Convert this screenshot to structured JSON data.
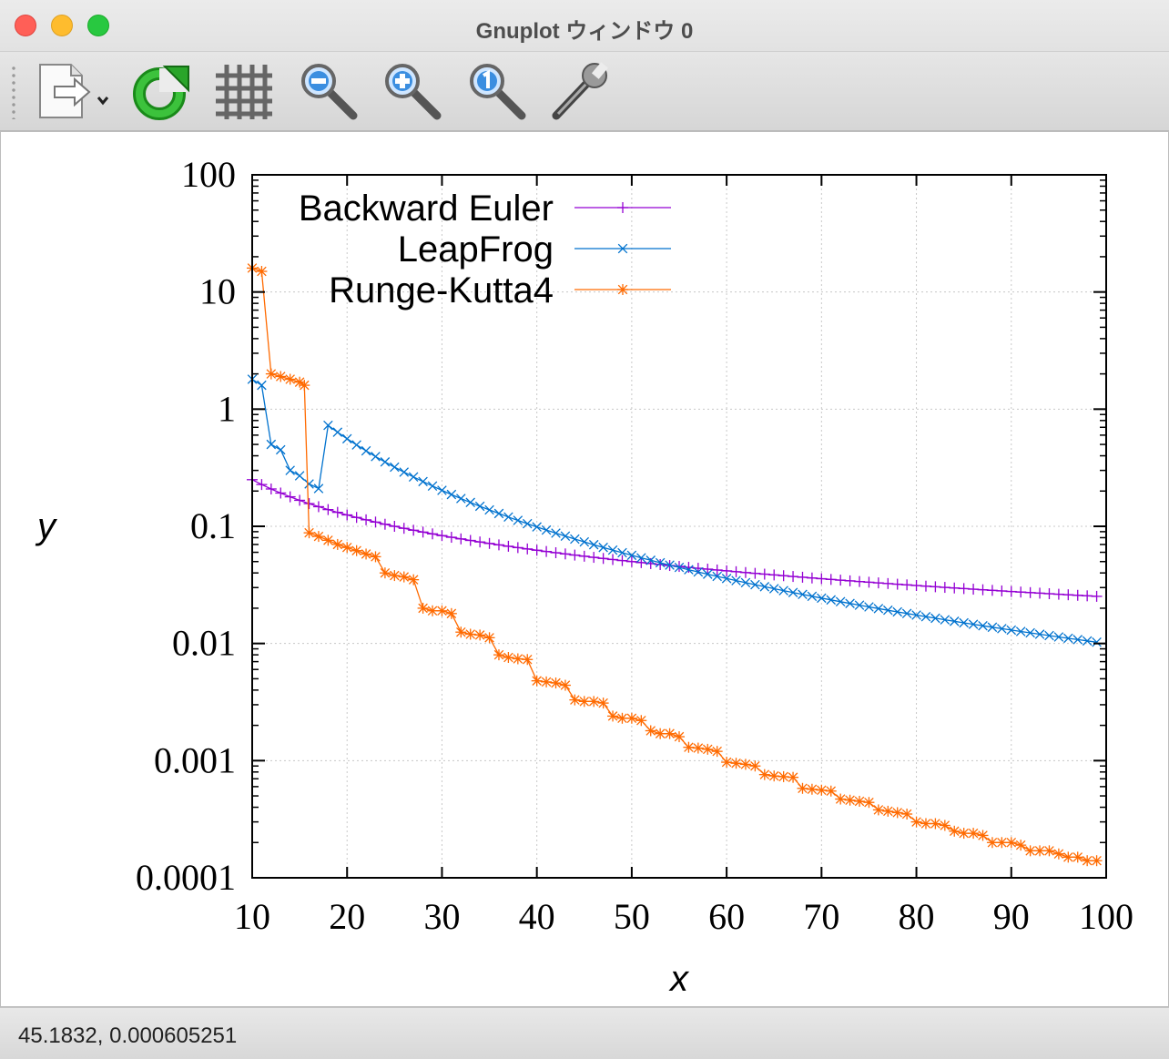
{
  "window": {
    "title": "Gnuplot ウィンドウ 0",
    "controls": [
      "close",
      "minimize",
      "zoom"
    ]
  },
  "toolbar": {
    "items": [
      {
        "name": "export-menu",
        "icon": "export-icon"
      },
      {
        "name": "replot",
        "icon": "refresh-icon"
      },
      {
        "name": "grid",
        "icon": "grid-icon"
      },
      {
        "name": "zoom-out",
        "icon": "zoom-out-icon"
      },
      {
        "name": "zoom-in",
        "icon": "zoom-in-icon"
      },
      {
        "name": "zoom-reset",
        "icon": "zoom-reset-icon"
      },
      {
        "name": "settings",
        "icon": "wrench-icon"
      }
    ]
  },
  "status": {
    "coordinates": "45.1832,  0.000605251"
  },
  "chart_data": {
    "type": "line",
    "title": "",
    "xlabel": "x",
    "ylabel": "y",
    "xlim": [
      10,
      100
    ],
    "ylim": [
      0.0001,
      100
    ],
    "yscale": "log",
    "grid": true,
    "legend_position": "top-left",
    "xticks": [
      "10",
      "20",
      "30",
      "40",
      "50",
      "60",
      "70",
      "80",
      "90",
      "100"
    ],
    "yticks": [
      "100",
      "10",
      "1",
      "0.1",
      "0.01",
      "0.001",
      "0.0001"
    ],
    "series": [
      {
        "name": "Backward Euler",
        "color": "#9400d3",
        "marker": "plus",
        "formula": "y = 2.5 / x"
      },
      {
        "name": "LeapFrog",
        "color": "#0072ce",
        "marker": "cross",
        "points": [
          [
            10,
            1.8
          ],
          [
            11,
            1.6
          ],
          [
            12,
            0.5
          ],
          [
            13,
            0.45
          ],
          [
            14,
            0.3
          ],
          [
            15,
            0.27
          ],
          [
            16,
            0.23
          ],
          [
            17,
            0.21
          ]
        ],
        "tail_formula": "y = 1000 / x^2.5"
      },
      {
        "name": "Runge-Kutta4",
        "color": "#ff6a00",
        "marker": "star",
        "points": [
          [
            10,
            16
          ],
          [
            11,
            15
          ],
          [
            12,
            2.0
          ],
          [
            13,
            1.9
          ],
          [
            14,
            1.8
          ],
          [
            15,
            1.7
          ],
          [
            15.5,
            1.6
          ],
          [
            16,
            0.088
          ],
          [
            17,
            0.082
          ],
          [
            18,
            0.076
          ],
          [
            19,
            0.07
          ],
          [
            20,
            0.066
          ],
          [
            21,
            0.062
          ],
          [
            22,
            0.058
          ],
          [
            23,
            0.055
          ],
          [
            24,
            0.04
          ],
          [
            25,
            0.038
          ],
          [
            26,
            0.037
          ],
          [
            27,
            0.035
          ],
          [
            28,
            0.02
          ],
          [
            29,
            0.019
          ],
          [
            30,
            0.019
          ],
          [
            31,
            0.018
          ],
          [
            32,
            0.0125
          ],
          [
            33,
            0.012
          ],
          [
            34,
            0.0118
          ],
          [
            35,
            0.0112
          ],
          [
            36,
            0.008
          ],
          [
            37,
            0.0076
          ],
          [
            38,
            0.0074
          ],
          [
            39,
            0.0073
          ],
          [
            40,
            0.0048
          ],
          [
            41,
            0.0047
          ],
          [
            42,
            0.0046
          ],
          [
            43,
            0.0044
          ],
          [
            44,
            0.0033
          ],
          [
            45,
            0.0032
          ],
          [
            46,
            0.0032
          ],
          [
            47,
            0.0031
          ],
          [
            48,
            0.0024
          ],
          [
            49,
            0.0023
          ],
          [
            50,
            0.0023
          ],
          [
            51,
            0.0022
          ],
          [
            52,
            0.0018
          ],
          [
            53,
            0.0017
          ],
          [
            54,
            0.0017
          ],
          [
            55,
            0.0016
          ],
          [
            56,
            0.0013
          ],
          [
            57,
            0.00128
          ],
          [
            58,
            0.00125
          ],
          [
            59,
            0.0012
          ],
          [
            60,
            0.00097
          ],
          [
            61,
            0.00095
          ],
          [
            62,
            0.00093
          ],
          [
            63,
            0.0009
          ],
          [
            64,
            0.00076
          ],
          [
            65,
            0.00074
          ],
          [
            66,
            0.00073
          ],
          [
            67,
            0.00072
          ],
          [
            68,
            0.00058
          ],
          [
            69,
            0.00057
          ],
          [
            70,
            0.00056
          ],
          [
            71,
            0.00055
          ],
          [
            72,
            0.00047
          ],
          [
            73,
            0.00046
          ],
          [
            74,
            0.00045
          ],
          [
            75,
            0.00044
          ],
          [
            76,
            0.00038
          ],
          [
            77,
            0.00037
          ],
          [
            78,
            0.00036
          ],
          [
            79,
            0.00035
          ],
          [
            80,
            0.0003
          ],
          [
            81,
            0.00029
          ],
          [
            82,
            0.00029
          ],
          [
            83,
            0.00028
          ],
          [
            84,
            0.00025
          ],
          [
            85,
            0.00024
          ],
          [
            86,
            0.00024
          ],
          [
            87,
            0.00023
          ],
          [
            88,
            0.0002
          ],
          [
            89,
            0.0002
          ],
          [
            90,
            0.0002
          ],
          [
            91,
            0.00019
          ],
          [
            92,
            0.00017
          ],
          [
            93,
            0.00017
          ],
          [
            94,
            0.00017
          ],
          [
            95,
            0.00016
          ],
          [
            96,
            0.00015
          ],
          [
            97,
            0.00015
          ],
          [
            98,
            0.00014
          ],
          [
            99,
            0.00014
          ]
        ]
      }
    ]
  }
}
